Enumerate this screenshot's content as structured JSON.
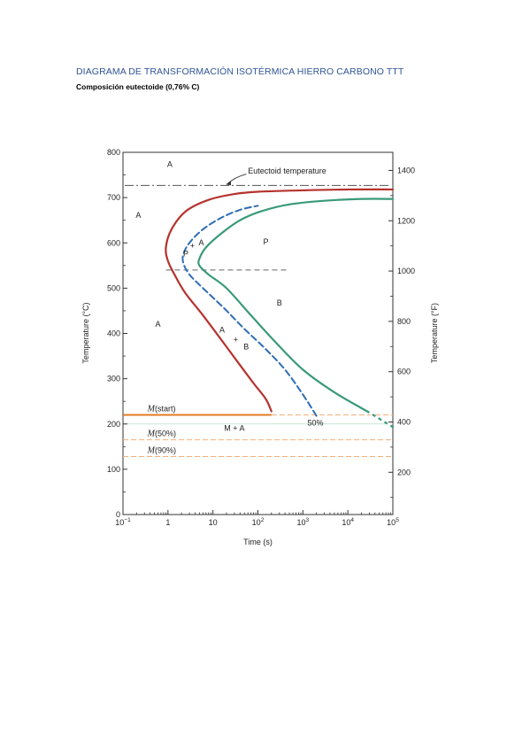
{
  "document": {
    "title": "DIAGRAMA DE TRANSFORMACIÓN ISOTÉRMICA HIERRO CARBONO TTT",
    "subtitle": "Composición eutectoide (0,76% C)"
  },
  "chart_data": {
    "type": "line",
    "xlabel": "Time (s)",
    "ylabel_left": "Temperature (°C)",
    "ylabel_right": "Temperature (°F)",
    "x_scale": "log",
    "xlim": [
      0.1,
      100000
    ],
    "ylim_c": [
      0,
      800
    ],
    "ylim_f": [
      32,
      1472
    ],
    "x_ticks": [
      {
        "value": 0.1,
        "base": "10",
        "exp": "−1"
      },
      {
        "value": 1,
        "base": "1",
        "exp": ""
      },
      {
        "value": 10,
        "base": "10",
        "exp": ""
      },
      {
        "value": 100,
        "base": "10",
        "exp": "2"
      },
      {
        "value": 1000,
        "base": "10",
        "exp": "3"
      },
      {
        "value": 10000,
        "base": "10",
        "exp": "4"
      },
      {
        "value": 100000,
        "base": "10",
        "exp": "5"
      }
    ],
    "y_ticks_c": [
      "0",
      "100",
      "200",
      "300",
      "400",
      "500",
      "600",
      "700",
      "800"
    ],
    "y_ticks_f": [
      "200",
      "400",
      "600",
      "800",
      "1000",
      "1200",
      "1400"
    ],
    "colors": {
      "start_curve": "#b5322e",
      "finish_curve": "#3a9a78",
      "fifty_curve": "#2f6db5",
      "eutectoid": "#555555",
      "m_start": "#e07b22",
      "m_lines": "#f0b07a",
      "axis": "#333333"
    },
    "eutectoid_temperature_c": 727,
    "eutectoid_label": "Eutectoid temperature",
    "series": [
      {
        "key": "start",
        "points": [
          [
            200,
            228
          ],
          [
            150,
            255
          ],
          [
            80,
            290
          ],
          [
            40,
            330
          ],
          [
            17,
            380
          ],
          [
            6,
            440
          ],
          [
            2.4,
            490
          ],
          [
            1.4,
            530
          ],
          [
            1.0,
            560
          ],
          [
            0.9,
            590
          ],
          [
            1.2,
            630
          ],
          [
            2.5,
            670
          ],
          [
            8,
            695
          ],
          [
            30,
            708
          ],
          [
            100,
            713
          ],
          [
            1000,
            716
          ],
          [
            10000,
            718
          ],
          [
            100000,
            718
          ]
        ]
      },
      {
        "key": "fifty",
        "points": [
          [
            2000,
            218
          ],
          [
            1000,
            265
          ],
          [
            400,
            320
          ],
          [
            150,
            365
          ],
          [
            50,
            410
          ],
          [
            18,
            455
          ],
          [
            6,
            500
          ],
          [
            3,
            530
          ],
          [
            2.2,
            555
          ],
          [
            2.2,
            575
          ],
          [
            3,
            600
          ],
          [
            6,
            630
          ],
          [
            15,
            655
          ],
          [
            40,
            673
          ],
          [
            100,
            682
          ]
        ]
      },
      {
        "key": "finish",
        "points": [
          [
            100000,
            193
          ],
          [
            30000,
            225
          ],
          [
            5000,
            270
          ],
          [
            1000,
            320
          ],
          [
            250,
            380
          ],
          [
            70,
            440
          ],
          [
            20,
            500
          ],
          [
            8,
            530
          ],
          [
            5,
            550
          ],
          [
            5,
            565
          ],
          [
            7,
            590
          ],
          [
            15,
            620
          ],
          [
            40,
            650
          ],
          [
            120,
            670
          ],
          [
            500,
            685
          ],
          [
            3000,
            693
          ],
          [
            20000,
            697
          ],
          [
            100000,
            697
          ]
        ]
      }
    ],
    "reference_lines": [
      {
        "name": "m-start",
        "label": "M(start)",
        "temp_c": 220
      },
      {
        "name": "m-50",
        "label": "M(50%)",
        "temp_c": 165
      },
      {
        "name": "m-90",
        "label": "M(90%)",
        "temp_c": 128
      }
    ],
    "nose_line_c": 540,
    "region_labels": [
      {
        "text": "A",
        "x": 1.1,
        "y": 768
      },
      {
        "text": "A",
        "x": 0.22,
        "y": 655
      },
      {
        "text": "A",
        "x": 0.6,
        "y": 415
      },
      {
        "text": "P",
        "x": 150,
        "y": 597
      },
      {
        "text": "P",
        "x": 2.5,
        "y": 570
      },
      {
        "text": "A",
        "x": 5.5,
        "y": 595
      },
      {
        "text": "+",
        "x": 3.5,
        "y": 588
      },
      {
        "text": "B",
        "x": 300,
        "y": 462
      },
      {
        "text": "A",
        "x": 16,
        "y": 402
      },
      {
        "text": "+",
        "x": 32,
        "y": 380
      },
      {
        "text": "B",
        "x": 55,
        "y": 365
      },
      {
        "text": "50%",
        "x": 1900,
        "y": 197
      },
      {
        "text": "M + A",
        "x": 30,
        "y": 185
      }
    ]
  }
}
